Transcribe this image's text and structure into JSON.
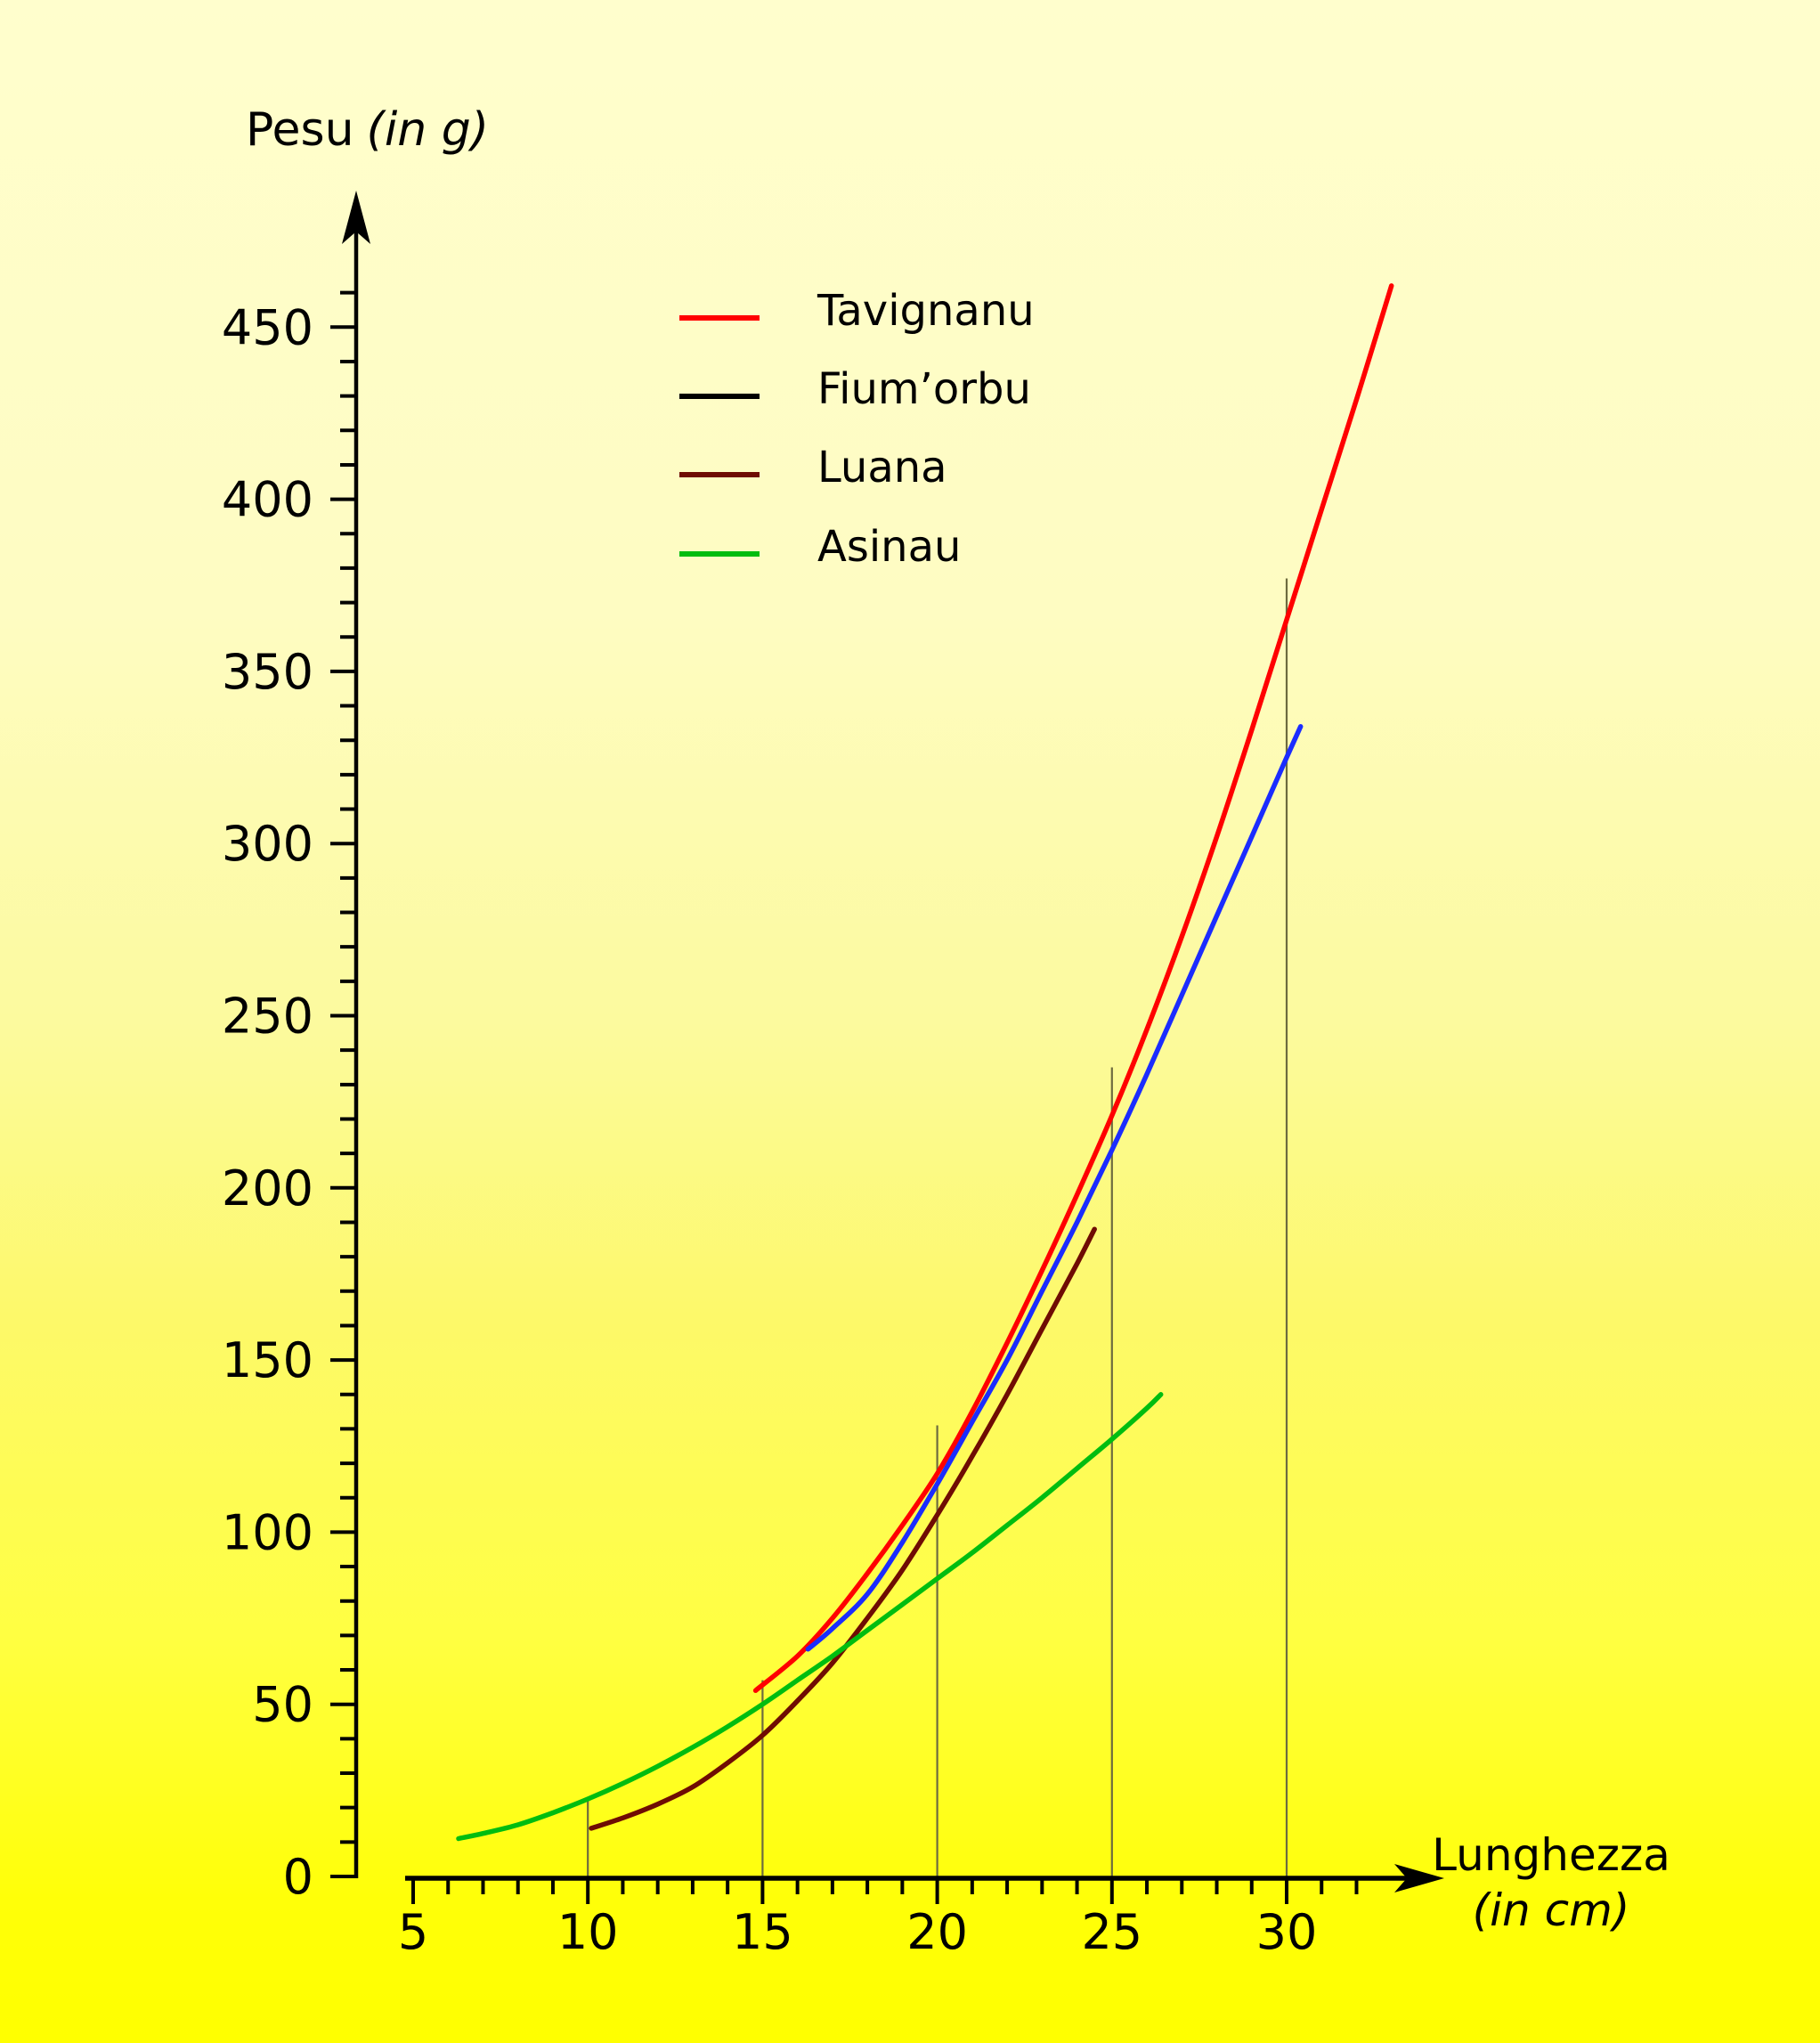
{
  "figure": {
    "y_axis_title": {
      "text": "Pesu",
      "unit": "(in g)"
    },
    "x_axis_title": {
      "text": "Lunghezza",
      "unit": "(in cm)"
    }
  },
  "legend": {
    "items": [
      {
        "label": "Tavignanu",
        "swatch_color": "#ff0000",
        "label_color": "#ff0000"
      },
      {
        "label": "Fium’orbu",
        "swatch_color": "#000000",
        "label_color": "#1b2cff"
      },
      {
        "label": "Luana",
        "swatch_color": "#6f0c03",
        "label_color": "#6f0c03"
      },
      {
        "label": "Asinau",
        "swatch_color": "#00bd10",
        "label_color": "#00bd10"
      }
    ]
  },
  "colors": {
    "background_top": "#fffecd",
    "background_bottom": "#ffff00",
    "axis": "#000000",
    "guide_line": "#6d6b3f"
  },
  "chart_data": {
    "type": "line",
    "title": "",
    "xlabel": "Lunghezza (in cm)",
    "ylabel": "Pesu (in g)",
    "xlim": [
      5,
      33.5
    ],
    "ylim": [
      0,
      470
    ],
    "grid": false,
    "legend_position": "upper-left-inside",
    "x_ticks_labeled": [
      5,
      10,
      15,
      20,
      25,
      30
    ],
    "x_minor_step": 1,
    "x_minor_max": 32,
    "y_ticks_labeled": [
      0,
      50,
      100,
      150,
      200,
      250,
      300,
      350,
      400,
      450
    ],
    "y_label_step": 50,
    "y_minor_step": 10,
    "y_minor_max": 460,
    "guide_lines": [
      {
        "x": 10,
        "top": 22.5
      },
      {
        "x": 15,
        "top": 57
      },
      {
        "x": 20,
        "top": 131
      },
      {
        "x": 25,
        "top": 235
      },
      {
        "x": 30,
        "top": 377
      }
    ],
    "series": [
      {
        "name": "Tavignanu",
        "color": "#ff0000",
        "points": [
          [
            14.8,
            54
          ],
          [
            16,
            64
          ],
          [
            17,
            75
          ],
          [
            18,
            88
          ],
          [
            19,
            102
          ],
          [
            20,
            117
          ],
          [
            21,
            135
          ],
          [
            22,
            155
          ],
          [
            23,
            176
          ],
          [
            24,
            198
          ],
          [
            25,
            221
          ],
          [
            26,
            246
          ],
          [
            27,
            273
          ],
          [
            28,
            302
          ],
          [
            29,
            333
          ],
          [
            30,
            365
          ],
          [
            31,
            397
          ],
          [
            32,
            429
          ],
          [
            33,
            462
          ]
        ]
      },
      {
        "name": "Fium’orbu",
        "color": "#1b2cff",
        "points": [
          [
            16.3,
            66
          ],
          [
            17,
            72
          ],
          [
            18,
            82
          ],
          [
            19,
            97
          ],
          [
            20,
            114
          ],
          [
            21,
            132
          ],
          [
            22,
            150
          ],
          [
            23,
            170
          ],
          [
            24,
            190
          ],
          [
            25,
            211
          ],
          [
            26,
            233
          ],
          [
            27,
            256
          ],
          [
            28,
            279
          ],
          [
            29,
            302
          ],
          [
            30,
            325
          ],
          [
            30.4,
            334
          ]
        ]
      },
      {
        "name": "Luana",
        "color": "#6f0c03",
        "points": [
          [
            10.1,
            14
          ],
          [
            11,
            17
          ],
          [
            12,
            21
          ],
          [
            13,
            26
          ],
          [
            14,
            33
          ],
          [
            15,
            41
          ],
          [
            16,
            51
          ],
          [
            17,
            62
          ],
          [
            18,
            75
          ],
          [
            19,
            89
          ],
          [
            20,
            105
          ],
          [
            21,
            122
          ],
          [
            22,
            140
          ],
          [
            23,
            159
          ],
          [
            24,
            178
          ],
          [
            24.5,
            188
          ]
        ]
      },
      {
        "name": "Asinau",
        "color": "#00bd10",
        "points": [
          [
            6.3,
            11
          ],
          [
            7,
            12.5
          ],
          [
            8,
            15
          ],
          [
            9,
            18.5
          ],
          [
            10,
            22.5
          ],
          [
            11,
            27
          ],
          [
            12,
            32
          ],
          [
            13,
            37.5
          ],
          [
            14,
            43.5
          ],
          [
            15,
            50
          ],
          [
            16,
            57
          ],
          [
            17,
            64
          ],
          [
            18,
            71.5
          ],
          [
            19,
            79
          ],
          [
            20,
            86.5
          ],
          [
            21,
            94
          ],
          [
            22,
            102
          ],
          [
            23,
            110
          ],
          [
            24,
            118.5
          ],
          [
            25,
            127
          ],
          [
            26,
            136
          ],
          [
            26.4,
            140
          ]
        ]
      }
    ]
  }
}
